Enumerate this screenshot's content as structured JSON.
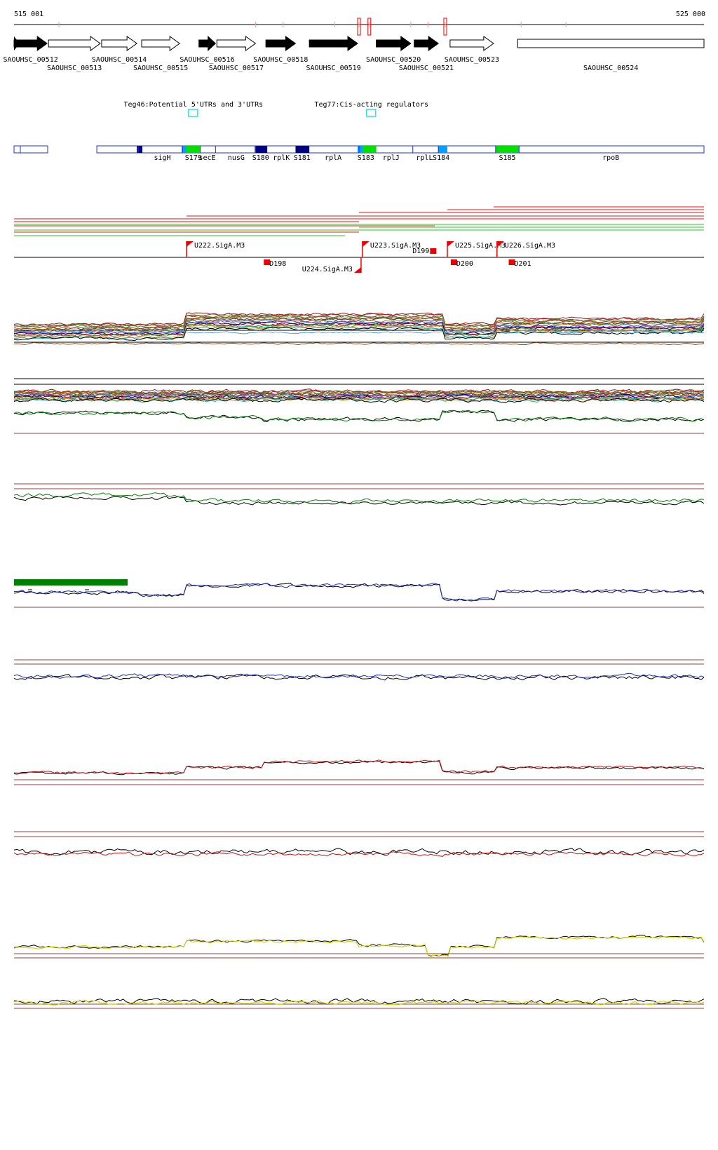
{
  "ruler": {
    "start_label": "515 001",
    "end_label": "525 000"
  },
  "colors": {
    "gene_fill_dark": "#000000",
    "region_border": "#1f2fd0",
    "region_dark": "#00007f",
    "region_light": "#00a0ff",
    "region_green": "#00e000",
    "annotation_box": "#33e0e0",
    "transcript_red": "#ee1010",
    "transcript_green": "#22cc22",
    "tss_red": "#ee0000",
    "baseline_brown": "#9b3c3c",
    "trace_green": "#008000",
    "trace_blue": "#1d2ec0",
    "trace_red": "#cc1010",
    "trace_yellow": "#d6d600",
    "scale_green": "#008000"
  },
  "genes": [
    {
      "label": "SAOUHSC_00512",
      "start": 0.0,
      "end": 0.048,
      "strand": "+",
      "filled": true
    },
    {
      "label": "SAOUHSC_00513",
      "start": 0.05,
      "end": 0.125,
      "strand": "+",
      "filled": false
    },
    {
      "label": "SAOUHSC_00514",
      "start": 0.127,
      "end": 0.178,
      "strand": "+",
      "filled": false
    },
    {
      "label": "SAOUHSC_00515",
      "start": 0.185,
      "end": 0.24,
      "strand": "+",
      "filled": false
    },
    {
      "label": "SAOUHSC_00516",
      "start": 0.268,
      "end": 0.292,
      "strand": "+",
      "filled": true
    },
    {
      "label": "SAOUHSC_00517",
      "start": 0.294,
      "end": 0.35,
      "strand": "+",
      "filled": false
    },
    {
      "label": "SAOUHSC_00518",
      "start": 0.365,
      "end": 0.408,
      "strand": "+",
      "filled": true
    },
    {
      "label": "SAOUHSC_00519",
      "start": 0.428,
      "end": 0.498,
      "strand": "+",
      "filled": true
    },
    {
      "label": "SAOUHSC_00520",
      "start": 0.525,
      "end": 0.575,
      "strand": "+",
      "filled": true
    },
    {
      "label": "SAOUHSC_00521",
      "start": 0.58,
      "end": 0.615,
      "strand": "+",
      "filled": true
    },
    {
      "label": "SAOUHSC_00523",
      "start": 0.632,
      "end": 0.695,
      "strand": "+",
      "filled": false
    },
    {
      "label": "SAOUHSC_00524",
      "start": 0.73,
      "end": 1.0,
      "strand": "+",
      "filled": false
    }
  ],
  "annotation_sets": [
    {
      "label": "Teg46:Potential 5'UTRs and 3'UTRs",
      "pos": 0.26
    },
    {
      "label": "Teg77:Cis-acting regulators",
      "pos": 0.518
    }
  ],
  "regions": [
    {
      "label": "sigH",
      "start": 0.185,
      "end": 0.245
    },
    {
      "label": "S179",
      "start": 0.25,
      "end": 0.27
    },
    {
      "label": "secE",
      "start": 0.27,
      "end": 0.29
    },
    {
      "label": "nusG",
      "start": 0.294,
      "end": 0.35
    },
    {
      "label": "S180",
      "start": 0.35,
      "end": 0.365
    },
    {
      "label": "rplK",
      "start": 0.365,
      "end": 0.41
    },
    {
      "label": "S181",
      "start": 0.41,
      "end": 0.425
    },
    {
      "label": "rplA",
      "start": 0.425,
      "end": 0.5
    },
    {
      "label": "S183",
      "start": 0.502,
      "end": 0.518
    },
    {
      "label": "rplJ",
      "start": 0.518,
      "end": 0.575
    },
    {
      "label": "rplL",
      "start": 0.58,
      "end": 0.61
    },
    {
      "label": "S184",
      "start": 0.61,
      "end": 0.628
    },
    {
      "label": "S185",
      "start": 0.7,
      "end": 0.73
    },
    {
      "label": "rpoB",
      "start": 0.73,
      "end": 1.0
    }
  ],
  "tss_sites": [
    {
      "label": "U222.SigA.M3",
      "pos": 0.25,
      "strand": "+"
    },
    {
      "label": "U223.SigA.M3",
      "pos": 0.505,
      "strand": "+"
    },
    {
      "label": "U225.SigA.M3",
      "pos": 0.628,
      "strand": "+"
    },
    {
      "label": "U226.SigA.M3",
      "pos": 0.7,
      "strand": "+"
    },
    {
      "label": "U224.SigA.M3",
      "pos": 0.503,
      "strand": "-"
    }
  ],
  "blocks": [
    {
      "label": "D198",
      "pos": 0.362
    },
    {
      "label": "D199",
      "pos": 0.603
    },
    {
      "label": "D200",
      "pos": 0.633
    },
    {
      "label": "D201",
      "pos": 0.717
    }
  ],
  "signal_tracks": [
    {
      "name": "multi-condition-forward",
      "color": "multi"
    },
    {
      "name": "multi-condition-reverse",
      "color": "multi"
    },
    {
      "name": "green-reverse",
      "color": "trace_green"
    },
    {
      "name": "blue-forward",
      "color": "trace_blue"
    },
    {
      "name": "blue-reverse",
      "color": "trace_blue"
    },
    {
      "name": "red-forward",
      "color": "trace_red"
    },
    {
      "name": "red-reverse",
      "color": "trace_red"
    },
    {
      "name": "yellow-forward",
      "color": "trace_yellow"
    },
    {
      "name": "yellow-reverse",
      "color": "trace_yellow"
    }
  ]
}
